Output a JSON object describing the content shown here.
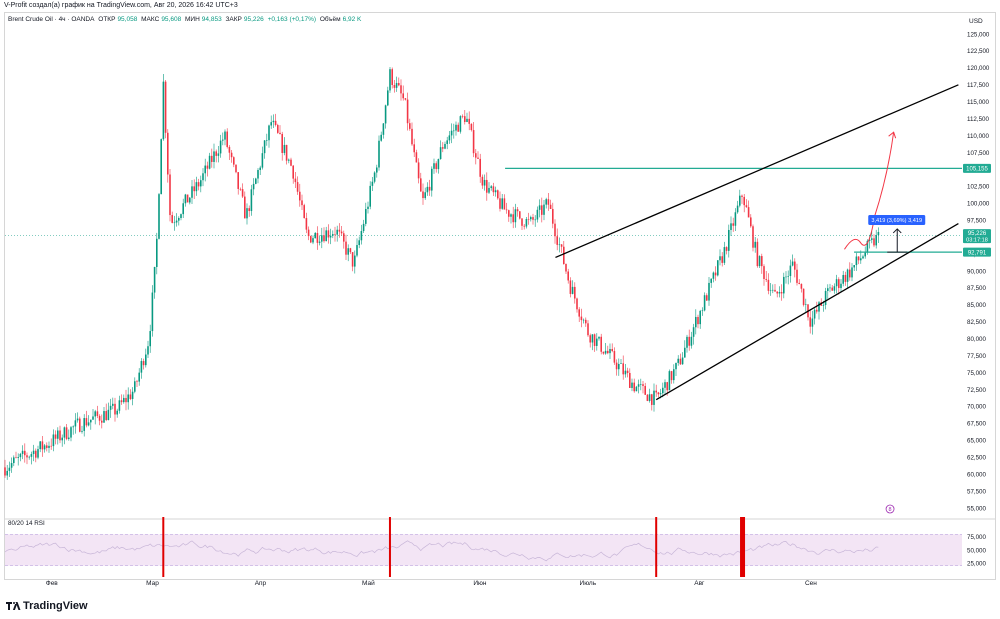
{
  "credit_text": "V-Profit создал(а) график на TradingView.com, Авг 20, 2026 16:42 UTC+3",
  "legend": {
    "symbol": "Brent Crude Oil · 4ч · OANDA",
    "open_label": "ОТКР",
    "open_value": "95,058",
    "high_label": "МАКС",
    "high_value": "95,608",
    "low_label": "МИН",
    "low_value": "94,853",
    "close_label": "ЗАКР",
    "close_value": "95,226",
    "change": "+0,163 (+0,17%)",
    "volume_label": "Объём",
    "volume_value": "6,92 K"
  },
  "footer": {
    "brand": "TradingView"
  },
  "colors": {
    "up": "#089981",
    "down": "#f23645",
    "level": "#22ab94",
    "arrow": "#f23645",
    "rsi_fill": "#f3e5f5",
    "rsi_line": "#9c27b0",
    "badge": "#2962ff"
  },
  "chart_data": [
    {
      "type": "candlestick",
      "currency_label": "USD",
      "price_axis": {
        "min": 55,
        "max": 125,
        "step": 2.5,
        "tick_labels": [
          "125,000",
          "122,500",
          "120,000",
          "117,500",
          "115,000",
          "112,500",
          "110,000",
          "107,500",
          "105,000",
          "102,500",
          "100,000",
          "97,500",
          "95,000",
          "92,500",
          "90,000",
          "87,500",
          "85,000",
          "82,500",
          "80,000",
          "77,500",
          "75,000",
          "72,500",
          "70,000",
          "67,500",
          "65,000",
          "62,500",
          "60,000",
          "57,500",
          "55,000"
        ]
      },
      "time_axis": {
        "labels": [
          "Фев",
          "Мар",
          "Апр",
          "Май",
          "Июн",
          "Июль",
          "Авг",
          "Сен"
        ]
      },
      "price_path_approx": [
        {
          "t": "2026-01-20",
          "p": 61.0
        },
        {
          "t": "2026-02-01",
          "p": 64.5
        },
        {
          "t": "2026-02-10",
          "p": 67.5
        },
        {
          "t": "2026-02-20",
          "p": 69.5
        },
        {
          "t": "2026-02-25",
          "p": 72.5
        },
        {
          "t": "2026-03-01",
          "p": 80.0
        },
        {
          "t": "2026-03-03",
          "p": 92.0
        },
        {
          "t": "2026-03-05",
          "p": 118.0
        },
        {
          "t": "2026-03-07",
          "p": 97.0
        },
        {
          "t": "2026-03-15",
          "p": 103.0
        },
        {
          "t": "2026-03-22",
          "p": 110.0
        },
        {
          "t": "2026-03-28",
          "p": 98.0
        },
        {
          "t": "2026-04-04",
          "p": 112.0
        },
        {
          "t": "2026-04-10",
          "p": 105.0
        },
        {
          "t": "2026-04-14",
          "p": 95.0
        },
        {
          "t": "2026-04-22",
          "p": 96.0
        },
        {
          "t": "2026-04-27",
          "p": 91.0
        },
        {
          "t": "2026-05-03",
          "p": 105.0
        },
        {
          "t": "2026-05-07",
          "p": 119.0
        },
        {
          "t": "2026-05-11",
          "p": 115.0
        },
        {
          "t": "2026-05-16",
          "p": 100.0
        },
        {
          "t": "2026-05-22",
          "p": 109.0
        },
        {
          "t": "2026-05-28",
          "p": 113.0
        },
        {
          "t": "2026-06-02",
          "p": 103.0
        },
        {
          "t": "2026-06-08",
          "p": 99.0
        },
        {
          "t": "2026-06-15",
          "p": 97.0
        },
        {
          "t": "2026-06-20",
          "p": 100.0
        },
        {
          "t": "2026-06-26",
          "p": 88.0
        },
        {
          "t": "2026-07-01",
          "p": 81.0
        },
        {
          "t": "2026-07-08",
          "p": 77.0
        },
        {
          "t": "2026-07-14",
          "p": 73.0
        },
        {
          "t": "2026-07-20",
          "p": 71.0
        },
        {
          "t": "2026-07-26",
          "p": 76.0
        },
        {
          "t": "2026-08-02",
          "p": 85.0
        },
        {
          "t": "2026-08-08",
          "p": 93.0
        },
        {
          "t": "2026-08-13",
          "p": 101.5
        },
        {
          "t": "2026-08-17",
          "p": 92.0
        },
        {
          "t": "2026-08-22",
          "p": 86.0
        },
        {
          "t": "2026-08-27",
          "p": 91.0
        },
        {
          "t": "2026-09-01",
          "p": 82.5
        },
        {
          "t": "2026-09-06",
          "p": 87.0
        },
        {
          "t": "2026-09-12",
          "p": 90.0
        },
        {
          "t": "2026-09-17",
          "p": 93.5
        },
        {
          "t": "2026-09-20",
          "p": 95.2
        }
      ],
      "horizontal_levels": [
        {
          "price": 105.155,
          "label": "105,155"
        },
        {
          "price": 92.791,
          "label": "92,791"
        }
      ],
      "last_price": {
        "price": 95.226,
        "label": "95,226",
        "countdown": "03:17:18"
      },
      "measure": {
        "from": 92.791,
        "to": 96.21,
        "label": "3,419 (3,69%) 3,419"
      },
      "channel_lines": [
        {
          "from": {
            "t": "2026-07-20",
            "p": 71.0
          },
          "to": {
            "t": "2026-10-12",
            "p": 97.0
          }
        },
        {
          "from": {
            "t": "2026-06-22",
            "p": 92.0
          },
          "to": {
            "t": "2026-10-12",
            "p": 117.5
          }
        }
      ],
      "forecast_arrow": {
        "from": {
          "t": "2026-09-17",
          "p": 92.5
        },
        "to": {
          "t": "2026-09-24",
          "p": 110.5
        }
      },
      "marker_text": "8"
    },
    {
      "type": "line",
      "title": "80/20 14 RSI",
      "y_tick_labels": [
        "75,000",
        "50,000",
        "25,000"
      ],
      "upper_band": 80,
      "lower_band": 20,
      "ylim": [
        10,
        90
      ],
      "signal_bars_approx": [
        "2026-03-05",
        "2026-05-07",
        "2026-07-20",
        "2026-08-13"
      ]
    }
  ]
}
